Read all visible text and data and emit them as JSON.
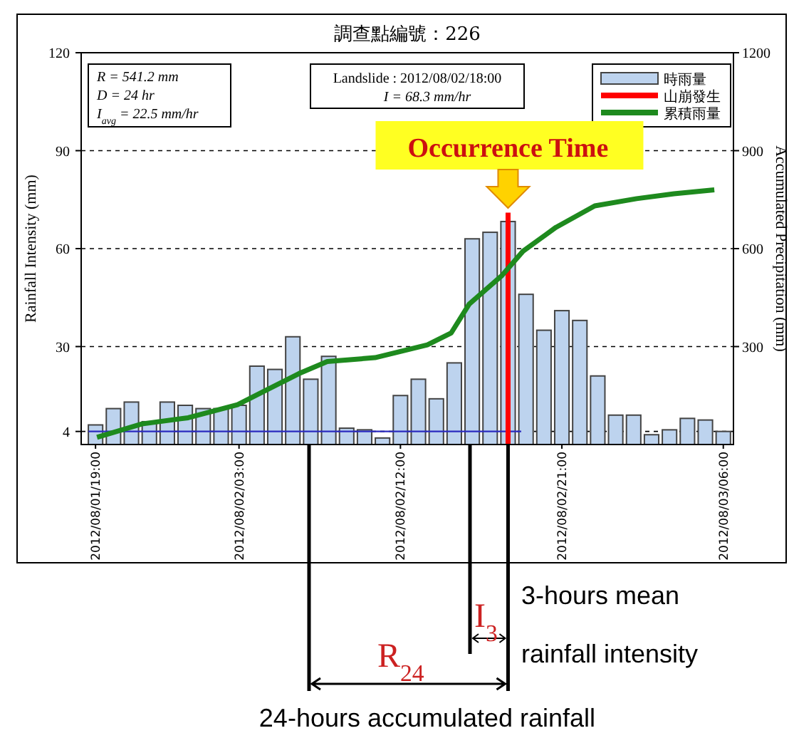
{
  "chart_data": {
    "type": "bar",
    "title": "調查點編號：226",
    "ylabel": "Rainfall Intensity (mm)",
    "y2label": "Accumulated Precipitation (mm)",
    "xlim": [
      "2012-08-01T18:12",
      "2012-08-03T06:34"
    ],
    "xticks": [
      {
        "value": "2012-08-01T19:00",
        "label": "2012/08/01/19:00"
      },
      {
        "value": "2012-08-02T03:00",
        "label": "2012/08/02/03:00"
      },
      {
        "value": "2012-08-02T12:00",
        "label": "2012/08/02/12:00"
      },
      {
        "value": "2012-08-02T21:00",
        "label": "2012/08/02/21:00"
      },
      {
        "value": "2012-08-03T06:00",
        "label": "2012/08/03/06:00"
      }
    ],
    "ylim": [
      0,
      120
    ],
    "yticks": [
      4,
      30,
      60,
      90,
      120
    ],
    "y2lim": [
      0,
      1200
    ],
    "y2ticks": [
      300,
      600,
      900,
      1200
    ],
    "grid": "y",
    "legend": "top right",
    "series": [
      {
        "name": "時雨量",
        "color": "#bdd3ee",
        "x": [
          "2012-08-01T19:00",
          "2012-08-01T20:00",
          "2012-08-01T21:00",
          "2012-08-01T22:00",
          "2012-08-01T23:00",
          "2012-08-02T00:00",
          "2012-08-02T01:00",
          "2012-08-02T02:00",
          "2012-08-02T03:00",
          "2012-08-02T04:00",
          "2012-08-02T05:00",
          "2012-08-02T06:00",
          "2012-08-02T07:00",
          "2012-08-02T08:00",
          "2012-08-02T09:00",
          "2012-08-02T10:00",
          "2012-08-02T11:00",
          "2012-08-02T12:00",
          "2012-08-02T13:00",
          "2012-08-02T14:00",
          "2012-08-02T15:00",
          "2012-08-02T16:00",
          "2012-08-02T17:00",
          "2012-08-02T18:00",
          "2012-08-02T19:00",
          "2012-08-02T20:00",
          "2012-08-02T21:00",
          "2012-08-02T22:00",
          "2012-08-02T23:00",
          "2012-08-03T00:00",
          "2012-08-03T01:00",
          "2012-08-03T02:00",
          "2012-08-03T03:00",
          "2012-08-03T04:00",
          "2012-08-03T05:00",
          "2012-08-03T06:00"
        ],
        "values": [
          6,
          11,
          13,
          7,
          13,
          12,
          11,
          11,
          12,
          24,
          23,
          33,
          20,
          27,
          5,
          4.5,
          2,
          15,
          20,
          14,
          25,
          63,
          65,
          68.3,
          46,
          35,
          41,
          38,
          21,
          9,
          9,
          3,
          4.5,
          8,
          7.5,
          4
        ]
      },
      {
        "type": "line",
        "color": "#2b2bbf",
        "x": [
          "2012-08-01T18:36",
          "2012-08-02T18:44"
        ],
        "values": [
          4,
          4
        ]
      },
      {
        "name": "山崩發生",
        "type": "line",
        "color": "#ff0000",
        "x": [
          "2012-08-02T18:00",
          "2012-08-02T18:00"
        ],
        "values": [
          0,
          71
        ]
      },
      {
        "name": "累積雨量",
        "type": "line",
        "axis": "y2",
        "color": "#1e8a1e",
        "x": [
          "2012-08-01T19:05",
          "2012-08-01T21:35",
          "2012-08-02T00:10",
          "2012-08-02T02:55",
          "2012-08-02T04:30",
          "2012-08-02T06:20",
          "2012-08-02T07:55",
          "2012-08-02T10:35",
          "2012-08-02T13:30",
          "2012-08-02T14:50",
          "2012-08-02T15:50",
          "2012-08-02T17:40",
          "2012-08-02T18:50",
          "2012-08-02T20:40",
          "2012-08-02T22:50",
          "2012-08-03T01:10",
          "2012-08-03T03:15",
          "2012-08-03T05:30"
        ],
        "values": [
          22,
          63,
          82,
          122,
          166,
          217,
          254,
          266,
          305,
          342,
          430,
          518,
          592,
          665,
          731,
          753,
          768,
          780
        ]
      }
    ],
    "annotations": [
      "R = 541.2 mm",
      "D = 24 hr",
      "I$_{avg}$ = 22.5 mm/hr",
      "Landslide : 2012/08/02/18:00",
      "I = 68.3 mm/hr",
      "Occurrence Time",
      "I$_{3}$",
      "3-hours mean",
      "rainfall intensity",
      "R$_{24}$",
      "24-hours accumulated rainfall"
    ]
  }
}
